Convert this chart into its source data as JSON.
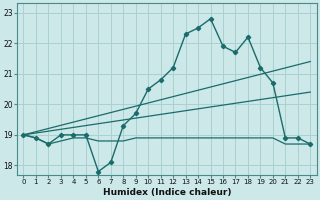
{
  "title": "",
  "xlabel": "Humidex (Indice chaleur)",
  "ylabel": "",
  "background_color": "#cce8e8",
  "grid_color": "#aad0d0",
  "line_color": "#1a6b6b",
  "x_ticks": [
    0,
    1,
    2,
    3,
    4,
    5,
    6,
    7,
    8,
    9,
    10,
    11,
    12,
    13,
    14,
    15,
    16,
    17,
    18,
    19,
    20,
    21,
    22,
    23
  ],
  "y_ticks": [
    18,
    19,
    20,
    21,
    22,
    23
  ],
  "ylim": [
    17.7,
    23.3
  ],
  "xlim": [
    -0.5,
    23.5
  ],
  "main_line_x": [
    0,
    1,
    2,
    3,
    4,
    5,
    6,
    7,
    8,
    9,
    10,
    11,
    12,
    13,
    14,
    15,
    16,
    17,
    18,
    19,
    20,
    21,
    22,
    23
  ],
  "main_line_y": [
    19.0,
    18.9,
    18.7,
    19.0,
    19.0,
    19.0,
    17.8,
    18.1,
    19.3,
    19.7,
    20.5,
    20.8,
    21.2,
    22.3,
    22.5,
    22.8,
    21.9,
    21.7,
    22.2,
    21.2,
    20.7,
    18.9,
    18.9,
    18.7
  ],
  "trend_line1_x": [
    0,
    23
  ],
  "trend_line1_y": [
    19.0,
    21.4
  ],
  "trend_line2_x": [
    0,
    23
  ],
  "trend_line2_y": [
    19.0,
    20.4
  ],
  "flat_line_x": [
    0,
    1,
    2,
    3,
    4,
    5,
    6,
    7,
    8,
    9,
    10,
    11,
    12,
    13,
    14,
    15,
    16,
    17,
    18,
    19,
    20,
    21,
    22,
    23
  ],
  "flat_line_y": [
    19.0,
    18.9,
    18.7,
    18.8,
    18.9,
    18.9,
    18.8,
    18.8,
    18.8,
    18.9,
    18.9,
    18.9,
    18.9,
    18.9,
    18.9,
    18.9,
    18.9,
    18.9,
    18.9,
    18.9,
    18.9,
    18.7,
    18.7,
    18.7
  ]
}
